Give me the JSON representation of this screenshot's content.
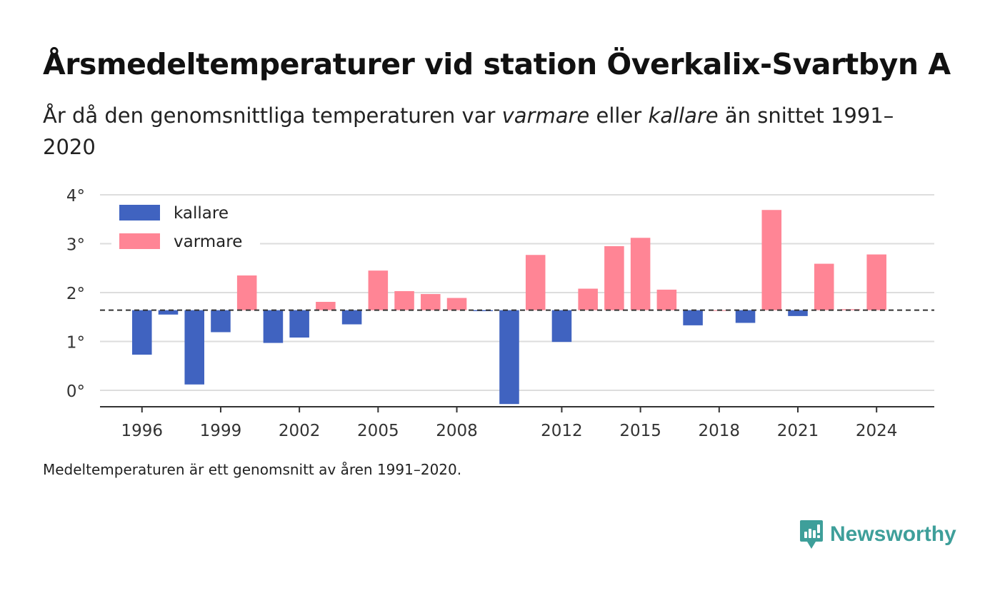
{
  "title": "Årsmedeltemperaturer vid station Överkalix-Svartbyn A",
  "subtitle": {
    "part1": "År då den genomsnittliga temperaturen var ",
    "warm_word": "varmare",
    "part2": " eller ",
    "cold_word": "kallare",
    "part3": " än snittet 1991–2020"
  },
  "note": "Medeltemperaturen är ett genomsnitt av åren 1991–2020.",
  "brand": {
    "name": "Newsworthy",
    "icon": "newsworthy-logo-icon",
    "color": "#3e9f9a"
  },
  "chart_data": {
    "type": "bar",
    "baseline": 1.64,
    "ylim": [
      -0.33,
      4
    ],
    "xlim": [
      1994.4,
      2026.2
    ],
    "yticks": [
      0,
      1,
      2,
      3,
      4
    ],
    "ytick_labels": [
      "0°",
      "1°",
      "2°",
      "3°",
      "4°"
    ],
    "xticks": [
      1996,
      1999,
      2002,
      2005,
      2008,
      2012,
      2015,
      2018,
      2021,
      2024
    ],
    "grid": true,
    "legend": {
      "placement": "top-left",
      "entries": [
        {
          "name": "kallare",
          "color": "#4063c0"
        },
        {
          "name": "varmare",
          "color": "#ff8595"
        }
      ]
    },
    "colors": {
      "warm": "#ff8595",
      "cold": "#4063c0",
      "grid": "#dddddd",
      "axis": "#333333"
    },
    "series": [
      {
        "x": [
          1996,
          1997,
          1998,
          1999,
          2000,
          2001,
          2002,
          2003,
          2004,
          2005,
          2006,
          2007,
          2008,
          2009,
          2010,
          2011,
          2012,
          2013,
          2014,
          2015,
          2016,
          2017,
          2018,
          2019,
          2020,
          2021,
          2022,
          2023,
          2024
        ],
        "values": [
          0.73,
          1.55,
          0.12,
          1.19,
          2.35,
          0.97,
          1.08,
          1.81,
          1.35,
          2.45,
          2.03,
          1.97,
          1.89,
          1.62,
          -0.28,
          2.77,
          0.99,
          2.08,
          2.95,
          3.12,
          2.06,
          1.33,
          1.64,
          1.38,
          3.69,
          1.52,
          2.59,
          1.66,
          2.78
        ]
      }
    ]
  }
}
